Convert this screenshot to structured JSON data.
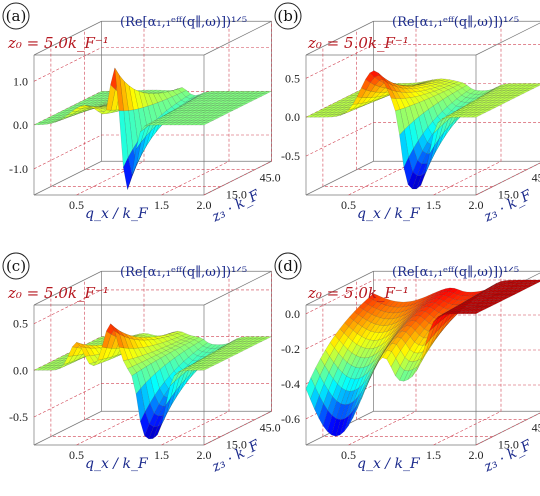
{
  "figure": {
    "z0_label": "z₀ = 5.0kₒ⁻¹",
    "formula_label": "(Re[α₁₁ᵉᶠᶠ(q∥,ω)])¹ᐟ⁵"
  },
  "chart_data": [
    {
      "type": "surface",
      "panel_label": "(a)",
      "z0_text": "z₀ = 5.0k_F⁻¹",
      "formula_text": "(Re[α₁,₁ᵉᶠᶠ(q∥,ω)])¹ᐟ⁵",
      "xlabel": "q_x / k_F",
      "ylabel": "z₃ · k_F",
      "x_ticks": [
        "0.5",
        "1.5",
        "2.0"
      ],
      "y_ticks": [
        "15.0",
        "45.0"
      ],
      "z_ticks": [
        "1.0",
        "0.0",
        "-1.0"
      ],
      "xlim": [
        0,
        2.0
      ],
      "ylim": [
        0,
        60
      ],
      "zlim": [
        -1.6,
        1.6
      ],
      "surface": "Sharp positive peak (~1.4) near q_x≈1.0 at small z₃, followed by a negative dip (~-1.5); flat plateau near 0 for large q_x."
    },
    {
      "type": "surface",
      "panel_label": "(b)",
      "z0_text": "z₀ = 5.0k_F⁻¹",
      "formula_text": "(Re[α₁,₁ᵉᶠᶠ(q∥,ω)])¹ᐟ⁵",
      "xlabel": "q_x / k_F",
      "ylabel": "z₃ · k_F",
      "x_ticks": [
        "0.5",
        "1.5",
        "2.0"
      ],
      "y_ticks": [
        "15.0",
        "45.0"
      ],
      "z_ticks": [
        "0.5",
        "0.0",
        "-0.5"
      ],
      "xlim": [
        0,
        2.0
      ],
      "ylim": [
        0,
        60
      ],
      "zlim": [
        -1.0,
        0.8
      ],
      "surface": "Broad positive ridge (~0.6) around q_x≈0.8, then a deep negative trough (~-0.9) near q_x≈1.2; flat near 0 beyond."
    },
    {
      "type": "surface",
      "panel_label": "(c)",
      "z0_text": "z₀ = 5.0k_F⁻¹",
      "formula_text": "(Re[α₁,₁ᵉᶠᶠ(q∥,ω)])¹ᐟ⁵",
      "xlabel": "q_x / k_F",
      "ylabel": "z₃ · k_F",
      "x_ticks": [
        "0.5",
        "1.5",
        "2.0"
      ],
      "y_ticks": [
        "15.0",
        "45.0"
      ],
      "z_ticks": [
        "0.5",
        "0.0",
        "-0.5"
      ],
      "xlim": [
        0,
        2.0
      ],
      "ylim": [
        0,
        60
      ],
      "zlim": [
        -0.8,
        0.7
      ],
      "surface": "Oscillating bumps (~0.3–0.5) for q_x below 1.0, steep negative drop (~-0.7) near q_x≈1.3; flat near 0 beyond."
    },
    {
      "type": "surface",
      "panel_label": "(d)",
      "z0_text": "z₀ = 5.0k_F⁻¹",
      "formula_text": "(Re[α₁,₁ᵉᶠᶠ(q∥,ω)])¹ᐟ⁵",
      "xlabel": "q_x / k_F",
      "ylabel": "z₃ · k_F",
      "x_ticks": [
        "0.5",
        "1.5",
        "2.0"
      ],
      "y_ticks": [
        "15.0",
        "45.0"
      ],
      "z_ticks": [
        "0.0",
        "-0.2",
        "-0.4",
        "-0.6"
      ],
      "xlim": [
        0,
        2.0
      ],
      "ylim": [
        0,
        60
      ],
      "zlim": [
        -0.75,
        0.05
      ],
      "surface": "Mostly near 0 (red plateau) at large q_x; broad negative basin (~-0.7) at small q_x and small z₃."
    }
  ]
}
